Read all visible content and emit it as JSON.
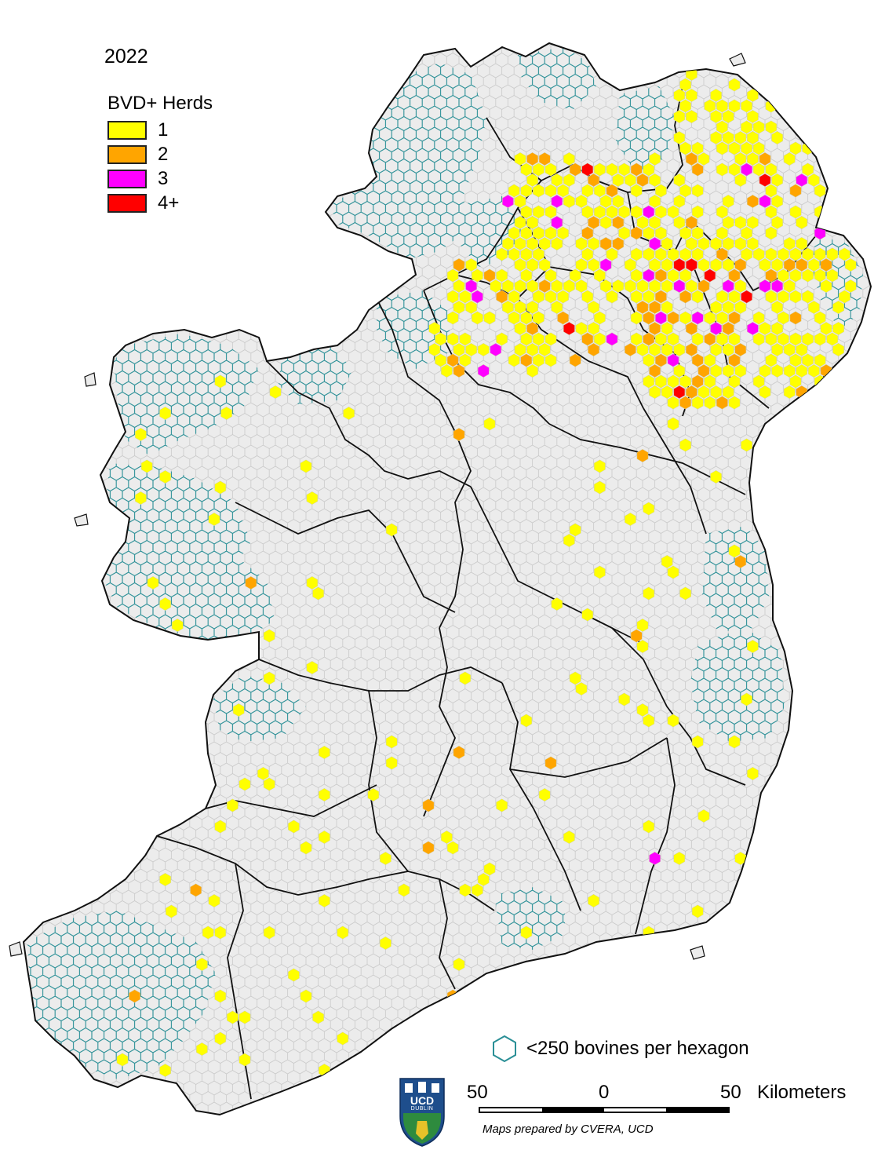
{
  "year": "2022",
  "legend": {
    "title": "BVD+ Herds",
    "items": [
      {
        "label": "1",
        "color": "#ffff00"
      },
      {
        "label": "2",
        "color": "#ffa500"
      },
      {
        "label": "3",
        "color": "#ff00ff"
      },
      {
        "label": "4+",
        "color": "#ff0000"
      }
    ]
  },
  "low_density_legend": {
    "label": "<250 bovines per hexagon",
    "color": "#2a8f96"
  },
  "scale_bar": {
    "left_value": "50",
    "mid_value": "0",
    "right_value": "50",
    "unit": "Kilometers"
  },
  "credit": "Maps prepared by CVERA, UCD",
  "logo_text": {
    "line1": "UCD",
    "line2": "DUBLIN"
  },
  "colors": {
    "land": "#ececec",
    "hex_outline": "#c9c9c9",
    "low_density": "#2a8f96",
    "border": "#111111",
    "logo_blue": "#1e4e8c"
  }
}
